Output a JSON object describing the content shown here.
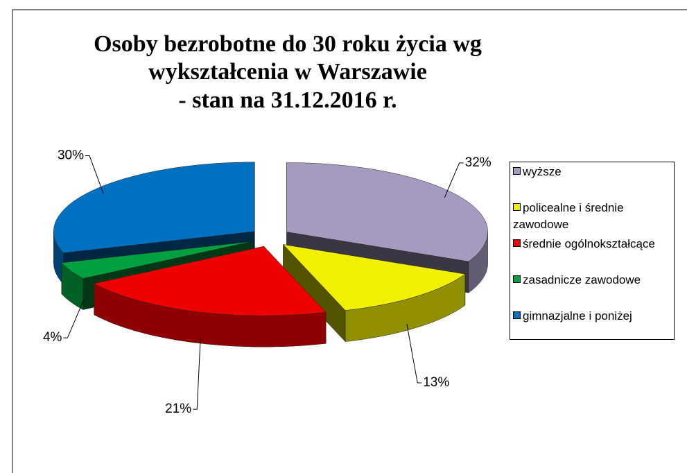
{
  "chart_data": {
    "type": "pie",
    "title": [
      "Osoby bezrobotne do 30 roku życia wg",
      "wykształcenia w Warszawie",
      "- stan na 31.12.2016 r."
    ],
    "categories": [
      "wyższe",
      "policealne i średnie zawodowe",
      "średnie ogólnokształcące",
      "zasadnicze zawodowe",
      "gimnazjalne i poniżej"
    ],
    "values": [
      32,
      13,
      21,
      4,
      30
    ],
    "value_labels": [
      "32%",
      "13%",
      "21%",
      "4%",
      "30%"
    ],
    "colors": [
      "#a59bc1",
      "#f0f000",
      "#ee0000",
      "#00a040",
      "#0070c0"
    ],
    "legend": "right"
  }
}
